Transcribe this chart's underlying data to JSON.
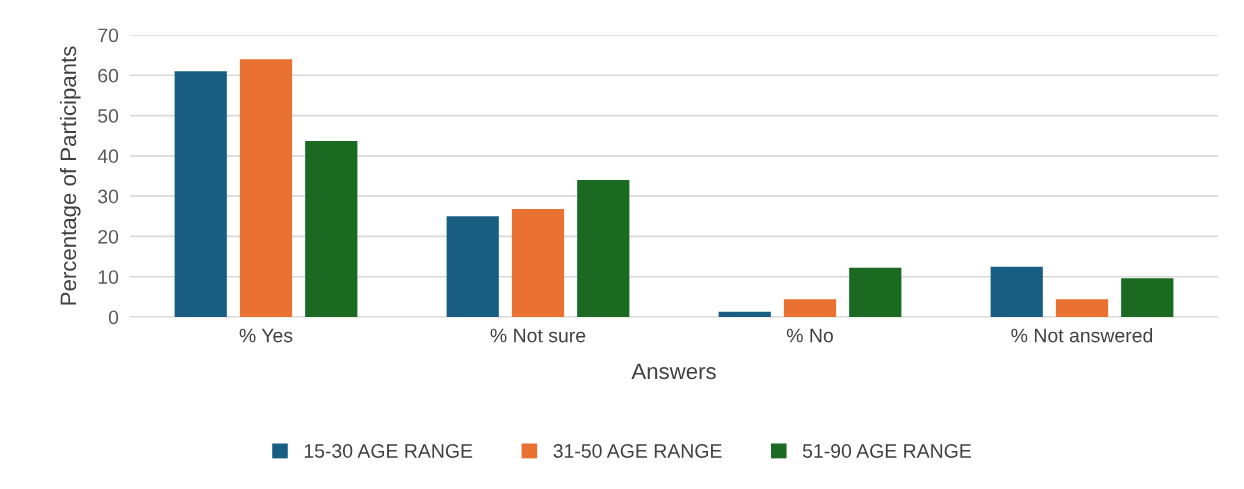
{
  "chart_data": {
    "type": "bar",
    "xlabel": "Answers",
    "ylabel": "Percentage of Participants",
    "categories": [
      "% Yes",
      "% Not sure",
      "% No",
      "% Not answered"
    ],
    "series": [
      {
        "name": "15-30 AGE RANGE",
        "color": "#175e82",
        "values": [
          61,
          25,
          1.3,
          12.5
        ]
      },
      {
        "name": "31-50 AGE RANGE",
        "color": "#e97132",
        "values": [
          64,
          26.8,
          4.4,
          4.4
        ]
      },
      {
        "name": "51-90 AGE RANGE",
        "color": "#1b6a22",
        "values": [
          43.7,
          34,
          12.2,
          9.6
        ]
      }
    ],
    "ylim": [
      0,
      70
    ],
    "yticks": [
      0,
      10,
      20,
      30,
      40,
      50,
      60,
      70
    ],
    "grid": "y",
    "legend": "bottom"
  }
}
